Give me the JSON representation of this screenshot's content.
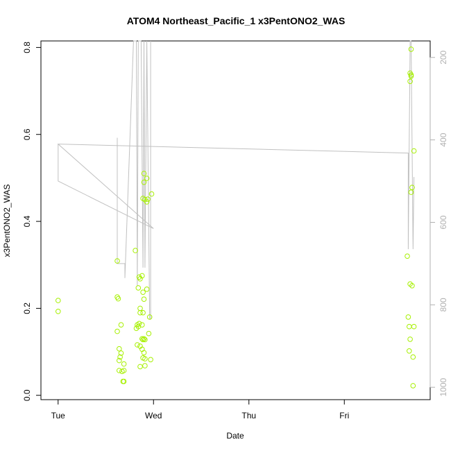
{
  "chart_data": {
    "type": "scatter",
    "title": "ATOM4 Northeast_Pacific_1 x3PentONO2_WAS",
    "xlabel": "Date",
    "ylabel": "x3PentONO2_WAS",
    "x_ticks": [
      "Tue",
      "Wed",
      "Thu",
      "Fri"
    ],
    "x_tick_days": [
      0,
      1,
      2,
      3
    ],
    "xlim_days": [
      -0.18,
      3.9
    ],
    "y_ticks": [
      0.0,
      0.2,
      0.4,
      0.6,
      0.8
    ],
    "y_tick_labels": [
      "0.0",
      "0.2",
      "0.4",
      "0.6",
      "0.8"
    ],
    "ylim": [
      -0.01,
      0.815
    ],
    "right_ticks": [
      200,
      400,
      600,
      800,
      1000
    ],
    "right_tick_labels": [
      "200",
      "400",
      "600",
      "800",
      "1000"
    ],
    "right_lim": [
      1030,
      160
    ],
    "colors": {
      "points": "#a6f000",
      "profile": "#c0c0c0",
      "axis_right": "#b0b0b0"
    },
    "points": [
      {
        "x": 0.0,
        "y": 0.218
      },
      {
        "x": 0.0,
        "y": 0.193
      },
      {
        "x": 0.62,
        "y": 0.309
      },
      {
        "x": 0.62,
        "y": 0.226
      },
      {
        "x": 0.63,
        "y": 0.222
      },
      {
        "x": 0.62,
        "y": 0.147
      },
      {
        "x": 0.66,
        "y": 0.162
      },
      {
        "x": 0.64,
        "y": 0.107
      },
      {
        "x": 0.66,
        "y": 0.097
      },
      {
        "x": 0.65,
        "y": 0.088
      },
      {
        "x": 0.64,
        "y": 0.08
      },
      {
        "x": 0.69,
        "y": 0.072
      },
      {
        "x": 0.64,
        "y": 0.057
      },
      {
        "x": 0.67,
        "y": 0.055
      },
      {
        "x": 0.69,
        "y": 0.057
      },
      {
        "x": 0.68,
        "y": 0.032
      },
      {
        "x": 0.69,
        "y": 0.032
      },
      {
        "x": 0.81,
        "y": 0.333
      },
      {
        "x": 0.85,
        "y": 0.272
      },
      {
        "x": 0.86,
        "y": 0.268
      },
      {
        "x": 0.88,
        "y": 0.275
      },
      {
        "x": 0.84,
        "y": 0.247
      },
      {
        "x": 0.89,
        "y": 0.237
      },
      {
        "x": 0.93,
        "y": 0.244
      },
      {
        "x": 0.9,
        "y": 0.221
      },
      {
        "x": 0.86,
        "y": 0.2
      },
      {
        "x": 0.86,
        "y": 0.19
      },
      {
        "x": 0.89,
        "y": 0.19
      },
      {
        "x": 0.96,
        "y": 0.18
      },
      {
        "x": 0.83,
        "y": 0.162
      },
      {
        "x": 0.85,
        "y": 0.165
      },
      {
        "x": 0.88,
        "y": 0.162
      },
      {
        "x": 0.82,
        "y": 0.154
      },
      {
        "x": 0.84,
        "y": 0.158
      },
      {
        "x": 0.95,
        "y": 0.142
      },
      {
        "x": 0.88,
        "y": 0.13
      },
      {
        "x": 0.89,
        "y": 0.128
      },
      {
        "x": 0.9,
        "y": 0.13
      },
      {
        "x": 0.91,
        "y": 0.128
      },
      {
        "x": 0.83,
        "y": 0.116
      },
      {
        "x": 0.86,
        "y": 0.113
      },
      {
        "x": 0.88,
        "y": 0.106
      },
      {
        "x": 0.9,
        "y": 0.098
      },
      {
        "x": 0.89,
        "y": 0.086
      },
      {
        "x": 0.91,
        "y": 0.084
      },
      {
        "x": 0.97,
        "y": 0.082
      },
      {
        "x": 0.86,
        "y": 0.066
      },
      {
        "x": 0.91,
        "y": 0.068
      },
      {
        "x": 0.9,
        "y": 0.51
      },
      {
        "x": 0.93,
        "y": 0.499
      },
      {
        "x": 0.9,
        "y": 0.49
      },
      {
        "x": 0.98,
        "y": 0.463
      },
      {
        "x": 0.89,
        "y": 0.453
      },
      {
        "x": 0.91,
        "y": 0.45
      },
      {
        "x": 0.94,
        "y": 0.451
      },
      {
        "x": 0.93,
        "y": 0.445
      },
      {
        "x": 3.7,
        "y": 0.796
      },
      {
        "x": 3.69,
        "y": 0.741
      },
      {
        "x": 3.7,
        "y": 0.737
      },
      {
        "x": 3.7,
        "y": 0.734
      },
      {
        "x": 3.69,
        "y": 0.722
      },
      {
        "x": 3.73,
        "y": 0.562
      },
      {
        "x": 3.71,
        "y": 0.478
      },
      {
        "x": 3.7,
        "y": 0.467
      },
      {
        "x": 3.66,
        "y": 0.32
      },
      {
        "x": 3.69,
        "y": 0.256
      },
      {
        "x": 3.71,
        "y": 0.252
      },
      {
        "x": 3.67,
        "y": 0.18
      },
      {
        "x": 3.68,
        "y": 0.158
      },
      {
        "x": 3.73,
        "y": 0.158
      },
      {
        "x": 3.69,
        "y": 0.129
      },
      {
        "x": 3.68,
        "y": 0.102
      },
      {
        "x": 3.72,
        "y": 0.088
      },
      {
        "x": 3.72,
        "y": 0.022
      }
    ],
    "profile": [
      {
        "x": 0.0,
        "p": 410
      },
      {
        "x": 0.0,
        "p": 500
      },
      {
        "x": 1.0,
        "p": 615
      },
      {
        "x": 0.0,
        "p": 410
      },
      {
        "x": 3.67,
        "p": 432
      },
      {
        "x": 3.67,
        "p": 665
      },
      {
        "x": 3.69,
        "p": 160
      },
      {
        "x": 3.7,
        "p": 160
      },
      {
        "x": 3.72,
        "p": 665
      },
      {
        "x": 3.73,
        "p": 490
      }
    ],
    "profile_segments": [
      [
        {
          "x": 0.62,
          "p": 395
        },
        {
          "x": 0.62,
          "p": 700
        },
        {
          "x": 0.7,
          "p": 700
        },
        {
          "x": 0.7,
          "p": 735
        },
        {
          "x": 0.79,
          "p": 160
        },
        {
          "x": 0.82,
          "p": 160
        },
        {
          "x": 0.83,
          "p": 755
        },
        {
          "x": 0.84,
          "p": 160
        },
        {
          "x": 0.87,
          "p": 160
        },
        {
          "x": 0.89,
          "p": 710
        },
        {
          "x": 0.9,
          "p": 160
        },
        {
          "x": 0.91,
          "p": 710
        },
        {
          "x": 0.93,
          "p": 160
        },
        {
          "x": 0.96,
          "p": 835
        },
        {
          "x": 0.97,
          "p": 835
        },
        {
          "x": 0.97,
          "p": 160
        }
      ]
    ]
  }
}
